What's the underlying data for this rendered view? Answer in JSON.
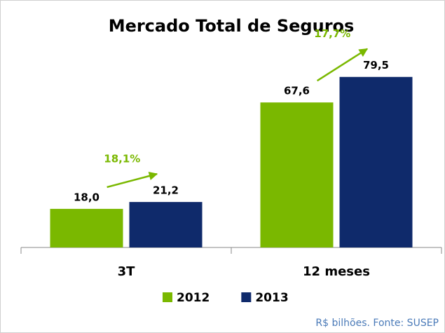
{
  "chart_data": {
    "type": "bar",
    "title": "Mercado Total de Seguros",
    "categories": [
      "3T",
      "12 meses"
    ],
    "series": [
      {
        "name": "2012",
        "color": "#7ab800",
        "values": [
          18.0,
          67.6
        ],
        "value_labels": [
          "18,0",
          "67,6"
        ]
      },
      {
        "name": "2013",
        "color": "#0f2a6b",
        "values": [
          21.2,
          79.5
        ],
        "value_labels": [
          "21,2",
          "79,5"
        ]
      }
    ],
    "annotations": [
      "18,1%",
      "17,7%"
    ],
    "annotation_color": "#7ab800",
    "ylim": [
      0,
      100
    ],
    "legend": "bottom",
    "note": "R$ bilhões. Fonte: SUSEP"
  }
}
